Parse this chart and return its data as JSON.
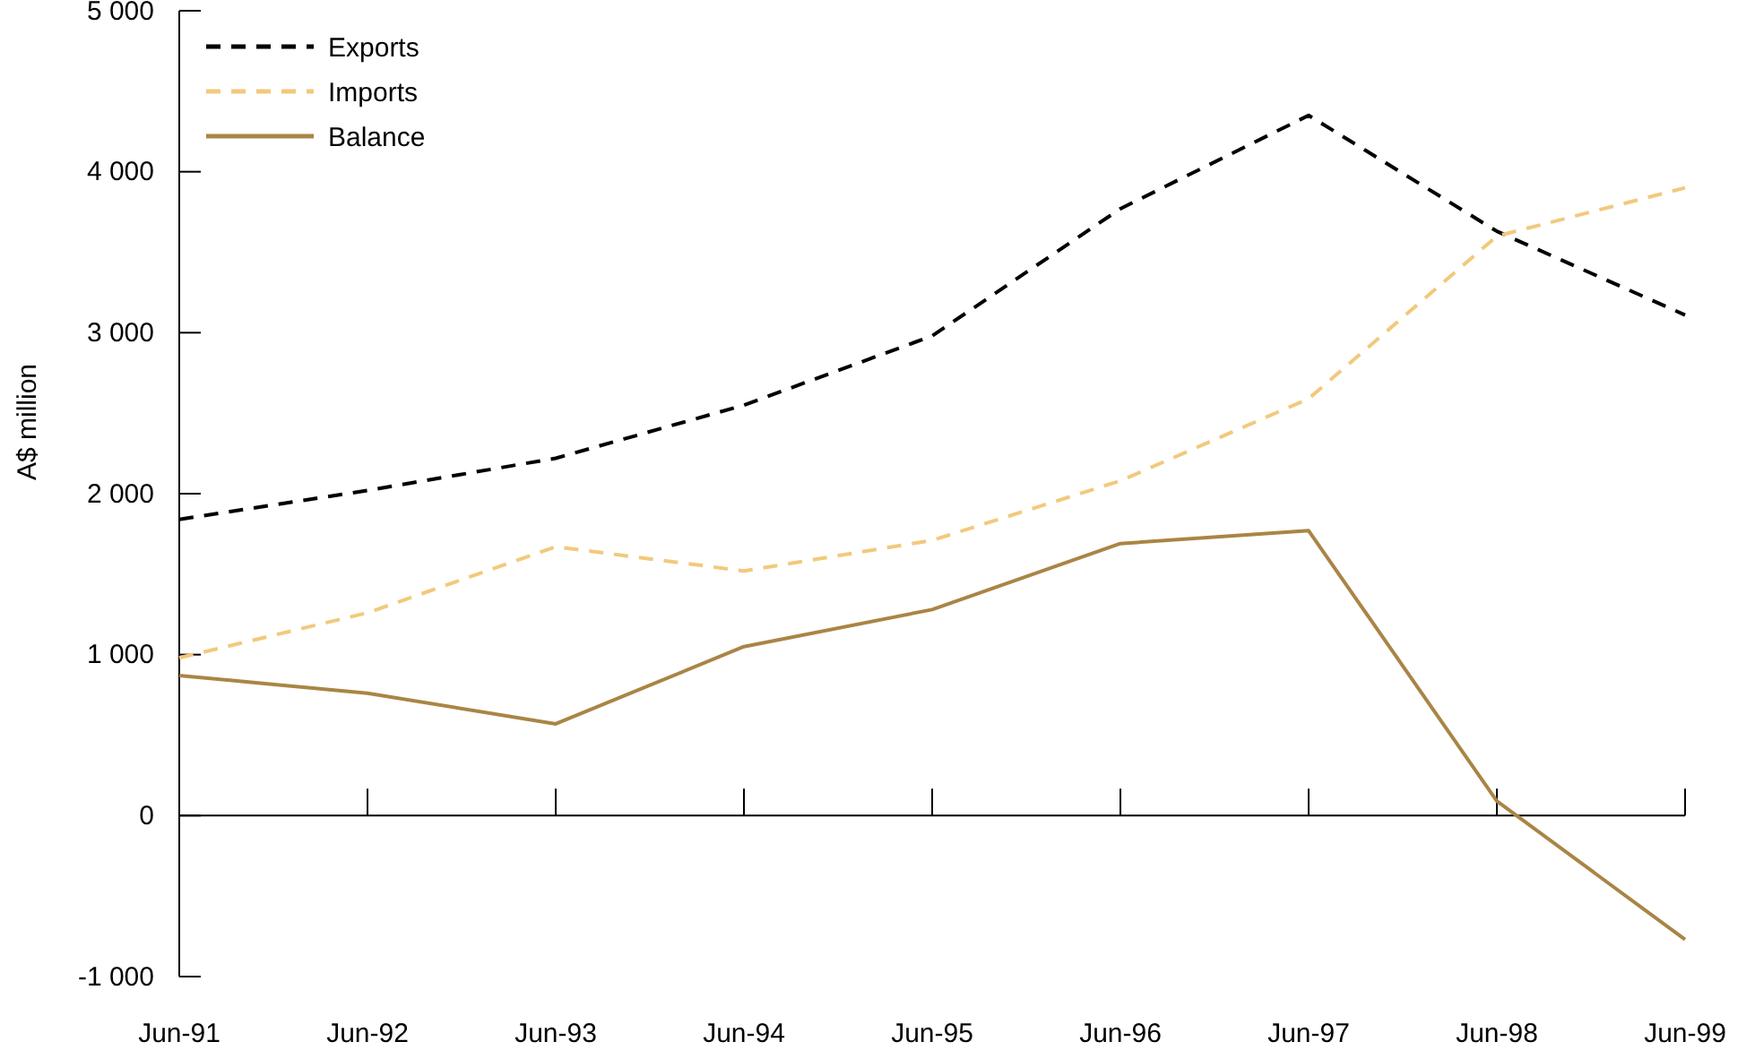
{
  "chart_data": {
    "type": "line",
    "ylabel": "A$ million",
    "categories": [
      "Jun-91",
      "Jun-92",
      "Jun-93",
      "Jun-94",
      "Jun-95",
      "Jun-96",
      "Jun-97",
      "Jun-98",
      "Jun-99"
    ],
    "series": [
      {
        "name": "Exports",
        "color": "#000000",
        "line_style": "dashed",
        "values": [
          1840,
          2020,
          2220,
          2550,
          2980,
          3770,
          4350,
          3630,
          3110
        ]
      },
      {
        "name": "Imports",
        "color": "#f2c97c",
        "line_style": "dashed",
        "values": [
          980,
          1260,
          1670,
          1520,
          1710,
          2080,
          2590,
          3600,
          3900
        ]
      },
      {
        "name": "Balance",
        "color": "#a98545",
        "line_style": "solid",
        "values": [
          870,
          760,
          570,
          1050,
          1280,
          1690,
          1770,
          90,
          -770
        ]
      }
    ],
    "ylim": [
      -1000,
      5000
    ],
    "yticks": [
      {
        "value": -1000,
        "label": "-1 000"
      },
      0,
      {
        "value": 1000,
        "label": "1 000"
      },
      {
        "value": 2000,
        "label": "2 000"
      },
      {
        "value": 3000,
        "label": "3 000"
      },
      {
        "value": 4000,
        "label": "4 000"
      },
      {
        "value": 5000,
        "label": "5 000"
      }
    ],
    "ref_lines": [
      {
        "axis": "y",
        "value": 0,
        "color": "#000000"
      }
    ],
    "grid": false,
    "legend": "top left",
    "marker": "none"
  }
}
